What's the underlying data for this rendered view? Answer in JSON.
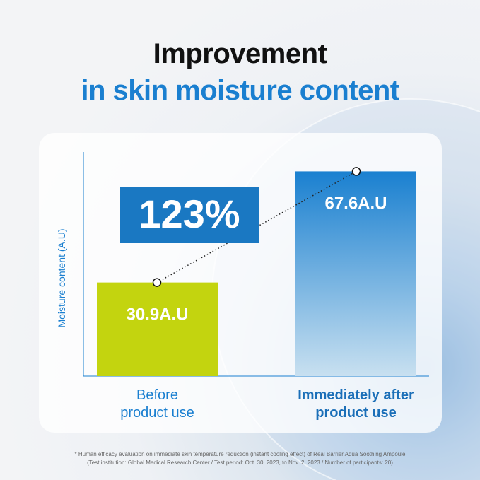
{
  "header": {
    "title": "Improvement",
    "subtitle": "in skin moisture content"
  },
  "colors": {
    "accent": "#1a7fd0",
    "before_bar": "#c3d40f",
    "after_bar_top": "#1a80d0",
    "after_bar_bottom": "#c8e0f0",
    "badge": "#1a78c2"
  },
  "chart_data": {
    "type": "bar",
    "categories": [
      "Before\nproduct use",
      "Immediately after\nproduct use"
    ],
    "category_lines": [
      [
        "Before",
        "product use"
      ],
      [
        "Immediately after",
        "product use"
      ]
    ],
    "values": [
      30.9,
      67.6
    ],
    "data_labels": [
      "30.9A.U",
      "67.6A.U"
    ],
    "ylabel": "Moisture content (A.U)",
    "ylim": [
      0,
      74
    ],
    "grid": false,
    "annotation": "123%"
  },
  "footnote": {
    "line1": "* Human efficacy evaluation on immediate skin temperature reduction (instant cooling effect) of Real Barrier Aqua Soothing Ampoule",
    "line2": "(Test institution: Global Medical Research Center / Test period: Oct. 30, 2023, to Nov. 2, 2023 / Number of participants: 20)"
  }
}
